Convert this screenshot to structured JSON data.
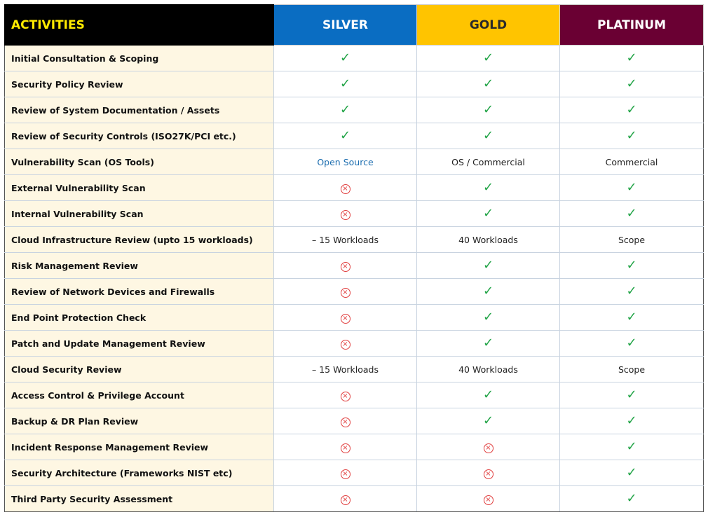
{
  "header": {
    "activities": "ACTIVITIES",
    "silver": "SILVER",
    "gold": "GOLD",
    "platinum": "PLATINUM"
  },
  "colors": {
    "activities_bg": "#000000",
    "activities_text": "#ffea00",
    "silver_bg": "#0a6dc2",
    "gold_bg": "#ffc400",
    "platinum_bg": "#6a0033",
    "check": "#22a447",
    "cross": "#e03c3c",
    "row_label_bg": "#fef7e3"
  },
  "rows": [
    {
      "activity": "Initial Consultation & Scoping",
      "silver": "check",
      "gold": "check",
      "platinum": "check"
    },
    {
      "activity": "Security Policy Review",
      "silver": "check",
      "gold": "check",
      "platinum": "check"
    },
    {
      "activity": "Review of System Documentation / Assets",
      "silver": "check",
      "gold": "check",
      "platinum": "check"
    },
    {
      "activity": "Review of Security Controls (ISO27K/PCI etc.)",
      "silver": "check",
      "gold": "check",
      "platinum": "check"
    },
    {
      "activity": "Vulnerability Scan (OS Tools)",
      "silver": "text:Open Source",
      "gold": "text:OS / Commercial",
      "platinum": "text:Commercial"
    },
    {
      "activity": "External Vulnerability Scan",
      "silver": "cross",
      "gold": "check",
      "platinum": "check"
    },
    {
      "activity": "Internal Vulnerability Scan",
      "silver": "cross",
      "gold": "check",
      "platinum": "check"
    },
    {
      "activity": "Cloud Infrastructure Review (upto 15 workloads)",
      "silver": "text:– 15 Workloads",
      "gold": "text:40 Workloads",
      "platinum": "text:Scope"
    },
    {
      "activity": "Risk Management Review",
      "silver": "cross",
      "gold": "check",
      "platinum": "check"
    },
    {
      "activity": "Review of Network Devices and Firewalls",
      "silver": "cross",
      "gold": "check",
      "platinum": "check"
    },
    {
      "activity": "End Point Protection Check",
      "silver": "cross",
      "gold": "check",
      "platinum": "check"
    },
    {
      "activity": "Patch and Update Management Review",
      "silver": "cross",
      "gold": "check",
      "platinum": "check"
    },
    {
      "activity": "Cloud Security Review",
      "silver": "text:– 15 Workloads",
      "gold": "text:40 Workloads",
      "platinum": "text:Scope"
    },
    {
      "activity": "Access Control & Privilege Account",
      "silver": "cross",
      "gold": "check",
      "platinum": "check"
    },
    {
      "activity": "Backup & DR Plan Review",
      "silver": "cross",
      "gold": "check",
      "platinum": "check"
    },
    {
      "activity": "Incident Response Management Review",
      "silver": "cross",
      "gold": "cross",
      "platinum": "check"
    },
    {
      "activity": "Security Architecture (Frameworks NIST etc)",
      "silver": "cross",
      "gold": "cross",
      "platinum": "check"
    },
    {
      "activity": "Third Party Security Assessment",
      "silver": "cross",
      "gold": "cross",
      "platinum": "check"
    }
  ]
}
